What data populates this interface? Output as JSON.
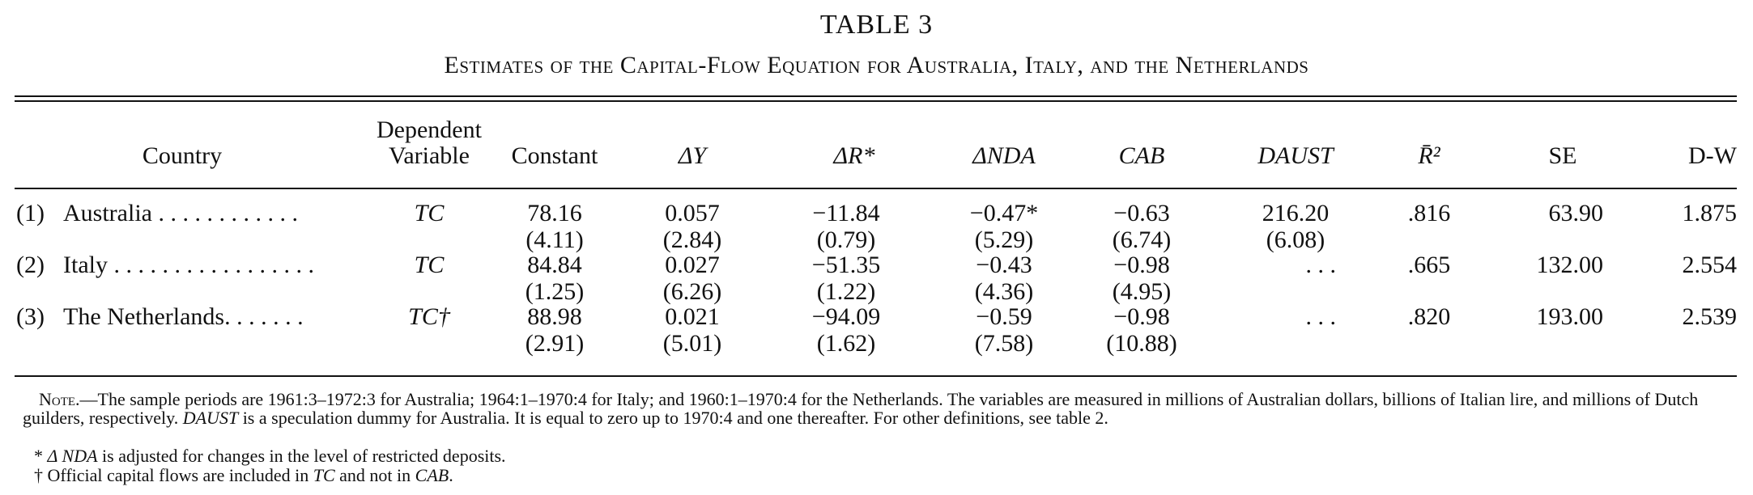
{
  "title": "TABLE 3",
  "subtitle": "Estimates of the Capital-Flow Equation for Australia, Italy, and the Netherlands",
  "headers": {
    "country": "Country",
    "dependent_line1": "Dependent",
    "dependent_line2": "Variable",
    "constant": "Constant",
    "dy": "ΔY",
    "dr": "ΔR*",
    "dnda": "ΔNDA",
    "cab": "CAB",
    "daust": "DAUST",
    "r2": "R̄²",
    "se": "SE",
    "dw": "D-W"
  },
  "rows": [
    {
      "num": "(1)",
      "country": "Australia",
      "leader": " . . . . . . . . . . . .",
      "dep": "TC",
      "constant": "78.16",
      "constant_t": "(4.11)",
      "dy": "0.057",
      "dy_t": "(2.84)",
      "dr": "−11.84",
      "dr_t": "(0.79)",
      "dnda": "−0.47*",
      "dnda_t": "(5.29)",
      "cab": "−0.63",
      "cab_t": "(6.74)",
      "daust": "216.20",
      "daust_t": "(6.08)",
      "r2": ".816",
      "se": "63.90",
      "dw": "1.875"
    },
    {
      "num": "(2)",
      "country": "Italy",
      "leader": " . . . . . . . . . . . . . . . . .",
      "dep": "TC",
      "constant": "84.84",
      "constant_t": "(1.25)",
      "dy": "0.027",
      "dy_t": "(6.26)",
      "dr": "−51.35",
      "dr_t": "(1.22)",
      "dnda": "−0.43",
      "dnda_t": "(4.36)",
      "cab": "−0.98",
      "cab_t": "(4.95)",
      "daust": ". . .",
      "daust_t": "",
      "r2": ".665",
      "se": "132.00",
      "dw": "2.554"
    },
    {
      "num": "(3)",
      "country": "The Netherlands",
      "leader": ". . . . . . .",
      "dep": "TC†",
      "constant": "88.98",
      "constant_t": "(2.91)",
      "dy": "0.021",
      "dy_t": "(5.01)",
      "dr": "−94.09",
      "dr_t": "(1.62)",
      "dnda": "−0.59",
      "dnda_t": "(7.58)",
      "cab": "−0.98",
      "cab_t": "(10.88)",
      "daust": ". . .",
      "daust_t": "",
      "r2": ".820",
      "se": "193.00",
      "dw": "2.539"
    }
  ],
  "note": {
    "label": "Note.",
    "text": "—The sample periods are 1961:3–1972:3 for Australia; 1964:1–1970:4 for Italy; and 1960:1–1970:4 for the Netherlands. The variables are measured in millions of Australian dollars, billions of Italian lire, and millions of Dutch guilders, respectively.",
    "daust_term": "DAUST",
    "text2": "is a speculation dummy for Australia. It is equal to zero up to 1970:4 and one thereafter. For other definitions, see table 2."
  },
  "footnotes": {
    "star_mark": "* ",
    "star_term": "Δ NDA",
    "star_text": " is adjusted for changes in the level of restricted deposits.",
    "dagger_mark": "† ",
    "dagger_text1": "Official capital flows are included in ",
    "dagger_term1": "TC",
    "dagger_text2": " and not in ",
    "dagger_term2": "CAB",
    "dagger_text3": "."
  }
}
